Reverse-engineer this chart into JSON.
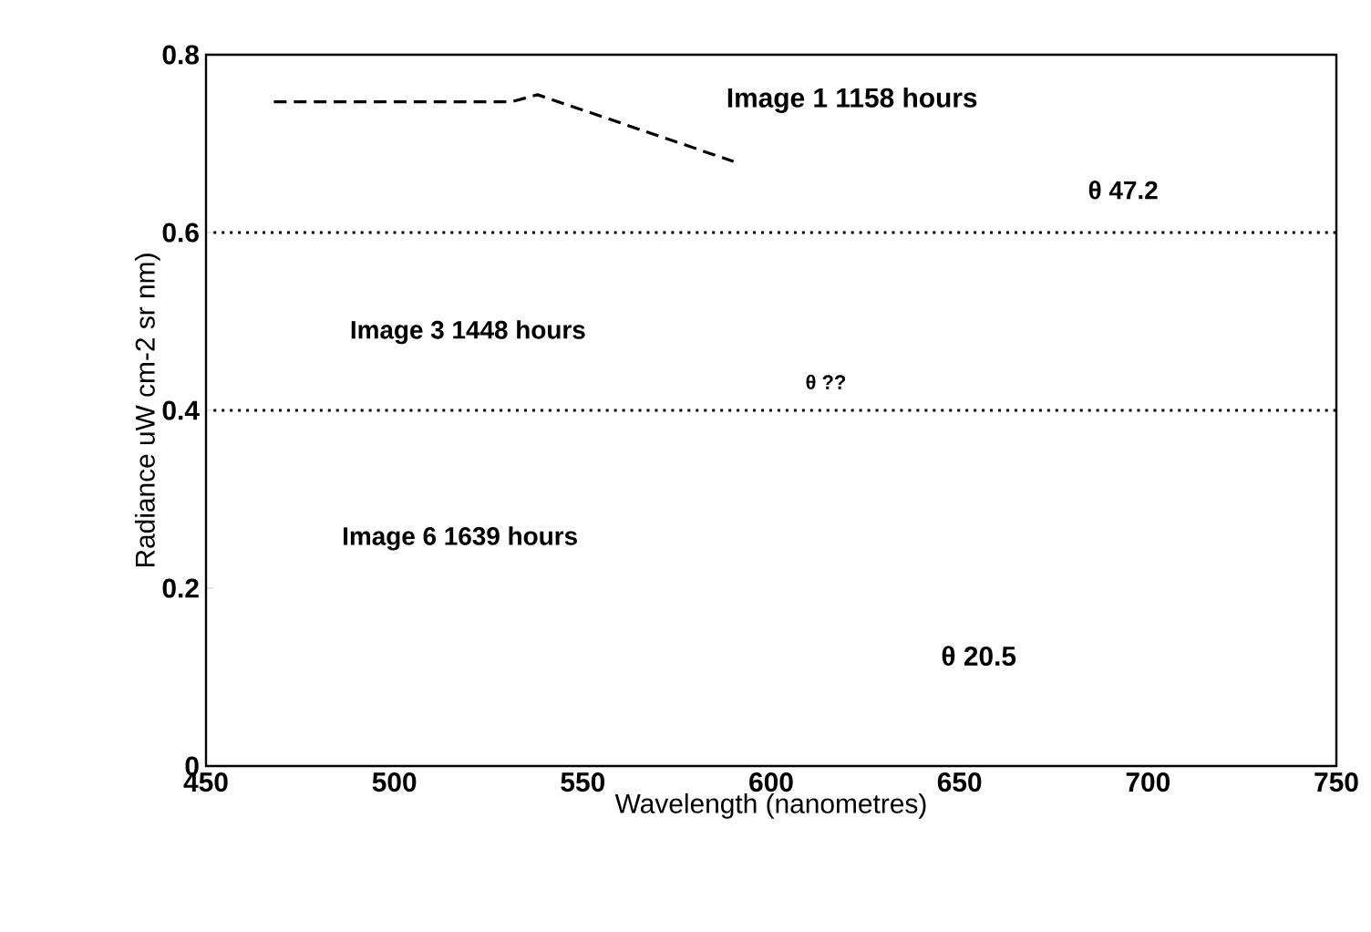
{
  "chart_data": {
    "type": "line",
    "xlabel": "Wavelength (nanometres)",
    "ylabel": "Radiance  uW cm-2 sr nm)",
    "xlim": [
      450,
      750
    ],
    "ylim": [
      0,
      0.8
    ],
    "xticks": [
      450,
      500,
      550,
      600,
      650,
      700,
      750
    ],
    "yticks": [
      0,
      0.2,
      0.4,
      0.6,
      0.8
    ],
    "series": [
      {
        "color": "#000000",
        "line_style": "dashed",
        "x": [
          468,
          531,
          538,
          590
        ],
        "values": [
          0.747,
          0.747,
          0.755,
          0.68
        ]
      },
      {
        "color": "#000000",
        "line_style": "dotted",
        "x": [
          452,
          750
        ],
        "values": [
          0.6,
          0.6
        ]
      },
      {
        "color": "#000000",
        "line_style": "dotted",
        "x": [
          452,
          750
        ],
        "values": [
          0.4,
          0.4
        ]
      }
    ],
    "annotations": [
      "Image 1 1158 hours",
      "θ 47.2",
      "Image 3 1448 hours",
      "θ ??",
      "Image 6 1639 hours",
      "θ 20.5"
    ]
  }
}
